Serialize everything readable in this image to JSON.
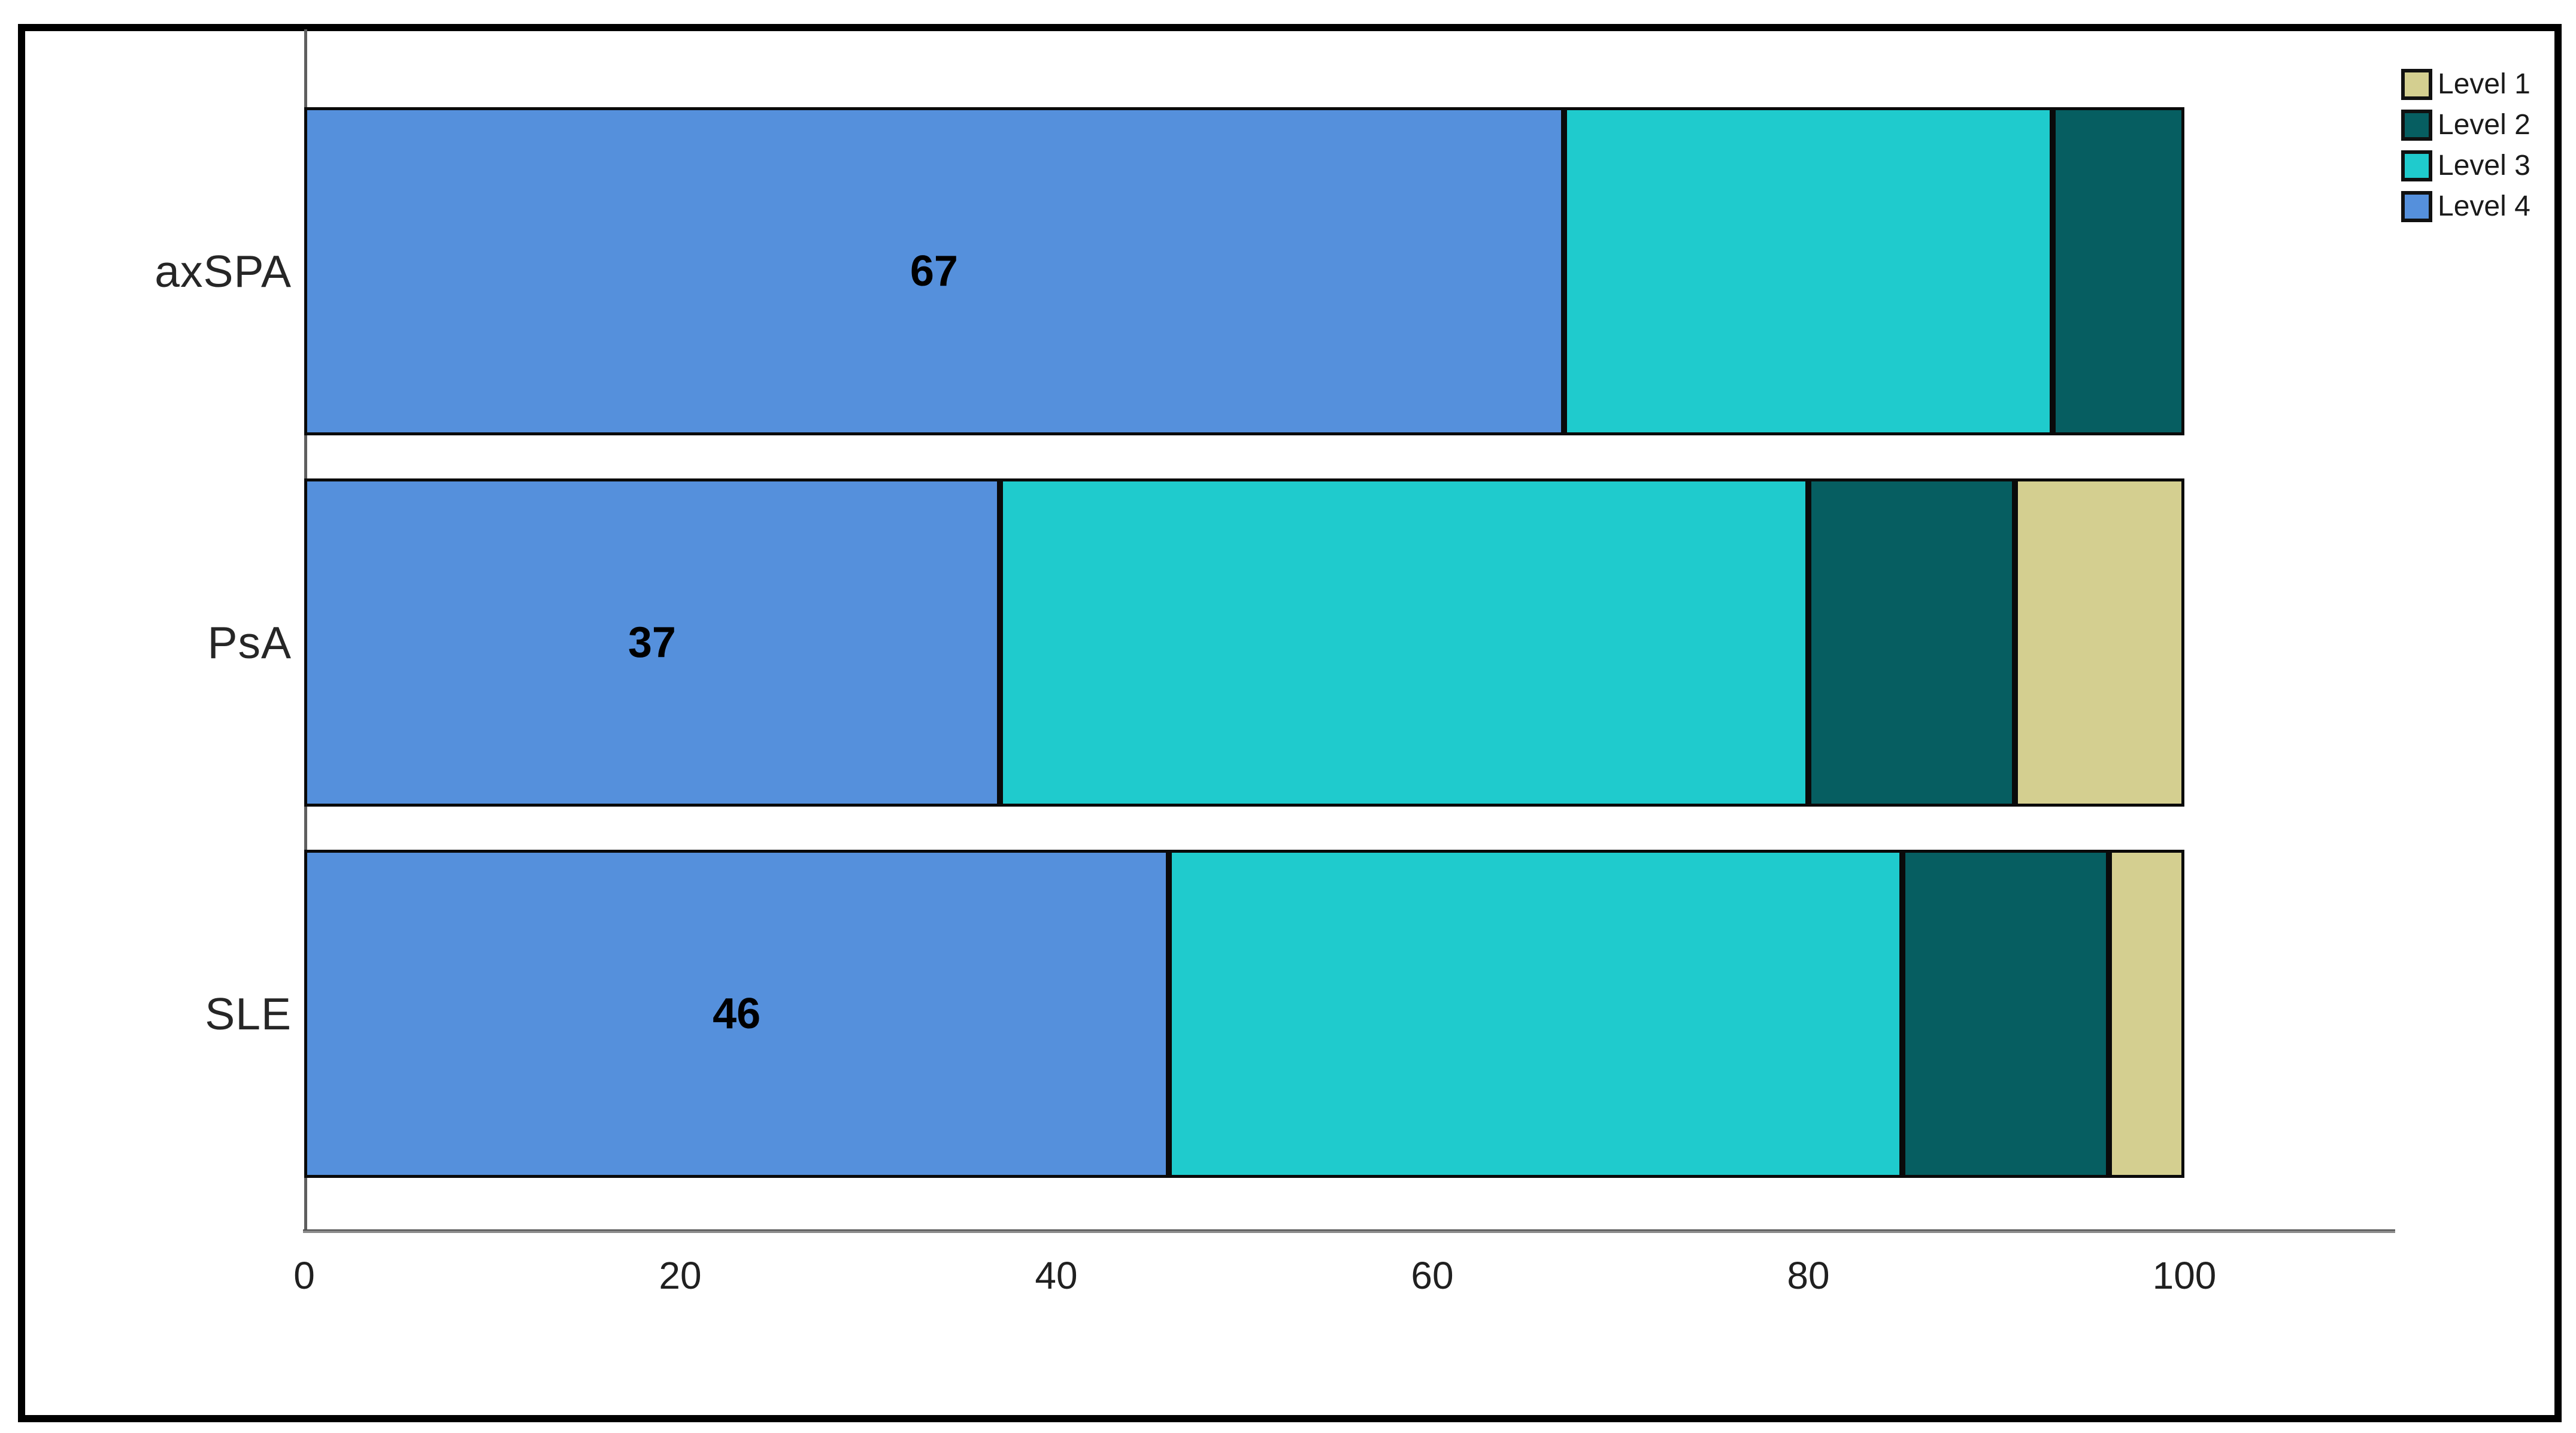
{
  "figure": {
    "background_color": "#ffffff",
    "frame_border_color": "#000000",
    "axis_line_color": "#6a6a6a",
    "segment_outline_color": "#0a0a0a",
    "text_color": "#202020"
  },
  "chart_data": {
    "type": "bar",
    "orientation": "horizontal",
    "stacked": true,
    "title": "",
    "xlabel": "",
    "ylabel": "",
    "categories": [
      "axSPA",
      "PsA",
      "SLE"
    ],
    "series": [
      {
        "name": "Level 1",
        "color": "#D4CF90",
        "values": [
          0,
          9,
          4
        ]
      },
      {
        "name": "Level 2",
        "color": "#065E61",
        "values": [
          7,
          11,
          11
        ]
      },
      {
        "name": "Level 3",
        "color": "#1FCBCD",
        "values": [
          26,
          43,
          39
        ]
      },
      {
        "name": "Level 4",
        "color": "#5590DC",
        "values": [
          67,
          37,
          46
        ]
      }
    ],
    "segment_order_left_to_right": [
      "Level 4",
      "Level 3",
      "Level 2",
      "Level 1"
    ],
    "data_labels": {
      "on_series": "Level 4",
      "values": [
        "67",
        "37",
        "46"
      ]
    },
    "x_ticks": [
      "0",
      "20",
      "40",
      "60",
      "80",
      "100"
    ],
    "xlim": [
      0,
      111
    ],
    "grid": false,
    "legend": {
      "position": "top-right",
      "order": [
        "Level 1",
        "Level 2",
        "Level 3",
        "Level 4"
      ]
    }
  }
}
